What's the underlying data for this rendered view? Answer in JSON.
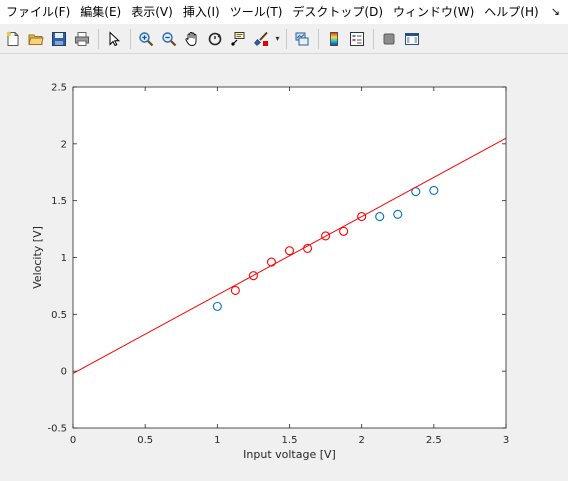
{
  "menubar": {
    "items": [
      {
        "label": "ファイル(F)"
      },
      {
        "label": "編集(E)"
      },
      {
        "label": "表示(V)"
      },
      {
        "label": "挿入(I)"
      },
      {
        "label": "ツール(T)"
      },
      {
        "label": "デスクトップ(D)"
      },
      {
        "label": "ウィンドウ(W)"
      },
      {
        "label": "ヘルプ(H)"
      }
    ],
    "overflow_icon": "dock-arrow-icon",
    "overflow_glyph": "↘"
  },
  "toolbar": {
    "buttons": [
      "new-figure-icon",
      "open-file-icon",
      "save-icon",
      "print-icon",
      "pointer-icon",
      "zoom-in-icon",
      "zoom-out-icon",
      "pan-hand-icon",
      "rotate-3d-icon",
      "data-cursor-icon",
      "brush-icon",
      "link-plot-icon",
      "colorbar-icon",
      "legend-icon",
      "hide-plot-tools-icon",
      "show-plot-tools-icon"
    ]
  },
  "chart_data": {
    "type": "scatter",
    "title": "",
    "xlabel": "Input voltage [V]",
    "ylabel": "Velocity [V]",
    "xlim": [
      0,
      3
    ],
    "ylim": [
      -0.5,
      2.5
    ],
    "xticks": [
      "0",
      "0.5",
      "1",
      "1.5",
      "2",
      "2.5",
      "3"
    ],
    "yticks": [
      "-0.5",
      "0",
      "0.5",
      "1",
      "1.5",
      "2",
      "2.5"
    ],
    "grid": false,
    "series": [
      {
        "marker": "circle",
        "color": "#0072bd",
        "x": [
          1.0,
          2.125,
          2.25,
          2.375,
          2.5
        ],
        "y": [
          0.57,
          1.36,
          1.38,
          1.58,
          1.59
        ]
      },
      {
        "marker": "circle",
        "color": "#ff0000",
        "x": [
          1.125,
          1.25,
          1.375,
          1.5,
          1.625,
          1.75,
          1.875,
          2.0
        ],
        "y": [
          0.71,
          0.84,
          0.96,
          1.06,
          1.08,
          1.19,
          1.23,
          1.36
        ]
      },
      {
        "marker": "line",
        "color": "#ff0000",
        "x": [
          0,
          3
        ],
        "y": [
          -0.02,
          2.05
        ]
      }
    ]
  }
}
